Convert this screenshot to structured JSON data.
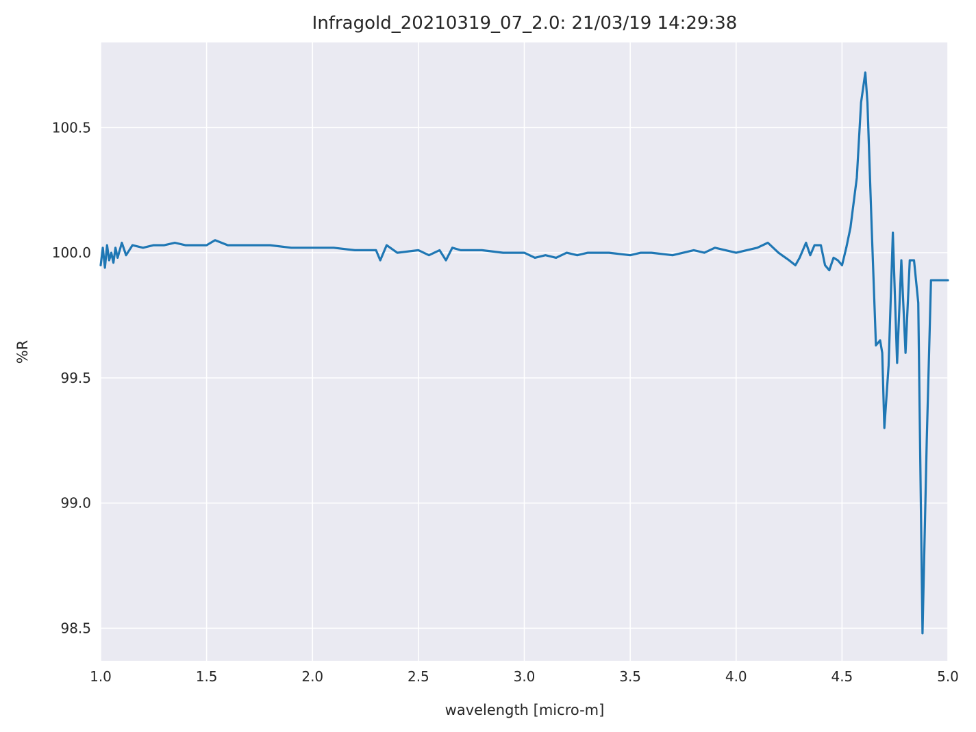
{
  "chart_data": {
    "type": "line",
    "title": "Infragold_20210319_07_2.0:  21/03/19 14:29:38",
    "xlabel": "wavelength [micro-m]",
    "ylabel": "%R",
    "xlim": [
      1.0,
      5.0
    ],
    "ylim": [
      98.37,
      100.84
    ],
    "xticks": [
      "1.0",
      "1.5",
      "2.0",
      "2.5",
      "3.0",
      "3.5",
      "4.0",
      "4.5",
      "5.0"
    ],
    "yticks": [
      "98.5",
      "99.0",
      "99.5",
      "100.0",
      "100.5"
    ],
    "xtick_values": [
      1.0,
      1.5,
      2.0,
      2.5,
      3.0,
      3.5,
      4.0,
      4.5,
      5.0
    ],
    "ytick_values": [
      98.5,
      99.0,
      99.5,
      100.0,
      100.5
    ],
    "grid": true,
    "background_color": "#eaeaf2",
    "line_color": "#1f77b4",
    "series": [
      {
        "x": [
          1.0,
          1.01,
          1.02,
          1.03,
          1.04,
          1.05,
          1.06,
          1.07,
          1.08,
          1.1,
          1.12,
          1.15,
          1.2,
          1.25,
          1.3,
          1.35,
          1.4,
          1.5,
          1.54,
          1.6,
          1.7,
          1.8,
          1.9,
          2.0,
          2.1,
          2.2,
          2.3,
          2.32,
          2.35,
          2.4,
          2.5,
          2.55,
          2.6,
          2.63,
          2.66,
          2.7,
          2.8,
          2.9,
          3.0,
          3.05,
          3.1,
          3.15,
          3.2,
          3.25,
          3.3,
          3.4,
          3.5,
          3.55,
          3.6,
          3.7,
          3.8,
          3.85,
          3.9,
          3.95,
          4.0,
          4.05,
          4.1,
          4.15,
          4.2,
          4.25,
          4.28,
          4.3,
          4.33,
          4.35,
          4.37,
          4.4,
          4.42,
          4.44,
          4.46,
          4.48,
          4.5,
          4.52,
          4.54,
          4.57,
          4.59,
          4.61,
          4.62,
          4.64,
          4.66,
          4.68,
          4.69,
          4.7,
          4.72,
          4.74,
          4.76,
          4.78,
          4.8,
          4.82,
          4.84,
          4.86,
          4.88,
          4.9,
          4.92,
          4.94,
          4.96,
          4.98,
          5.0
        ],
        "y": [
          99.95,
          100.02,
          99.94,
          100.03,
          99.97,
          100.0,
          99.96,
          100.02,
          99.98,
          100.04,
          99.99,
          100.03,
          100.02,
          100.03,
          100.03,
          100.04,
          100.03,
          100.03,
          100.05,
          100.03,
          100.03,
          100.03,
          100.02,
          100.02,
          100.02,
          100.01,
          100.01,
          99.97,
          100.03,
          100.0,
          100.01,
          99.99,
          100.01,
          99.97,
          100.02,
          100.01,
          100.01,
          100.0,
          100.0,
          99.98,
          99.99,
          99.98,
          100.0,
          99.99,
          100.0,
          100.0,
          99.99,
          100.0,
          100.0,
          99.99,
          100.01,
          100.0,
          100.02,
          100.01,
          100.0,
          100.01,
          100.02,
          100.04,
          100.0,
          99.97,
          99.95,
          99.98,
          100.04,
          99.99,
          100.03,
          100.03,
          99.95,
          99.93,
          99.98,
          99.97,
          99.95,
          100.02,
          100.1,
          100.3,
          100.6,
          100.72,
          100.6,
          100.1,
          99.63,
          99.65,
          99.6,
          99.3,
          99.55,
          100.08,
          99.56,
          99.97,
          99.6,
          99.97,
          99.97,
          99.8,
          98.48,
          99.25,
          99.89,
          99.89,
          99.89,
          99.89,
          99.89
        ]
      }
    ]
  }
}
